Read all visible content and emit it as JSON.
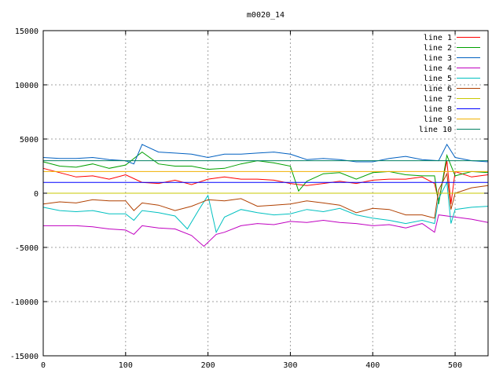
{
  "chart_data": {
    "type": "line",
    "title": "m0020_14",
    "xlabel": "",
    "ylabel": "",
    "xlim": [
      0,
      540
    ],
    "ylim": [
      -15000,
      15000
    ],
    "xticks": [
      0,
      100,
      200,
      300,
      400,
      500
    ],
    "yticks": [
      -15000,
      -10000,
      -5000,
      0,
      5000,
      10000,
      15000
    ],
    "grid": true,
    "legend_position": "top-right",
    "series": [
      {
        "name": "line 1",
        "color": "#ff0000",
        "points": [
          [
            0,
            2300
          ],
          [
            20,
            1900
          ],
          [
            40,
            1500
          ],
          [
            60,
            1600
          ],
          [
            80,
            1300
          ],
          [
            100,
            1700
          ],
          [
            120,
            1000
          ],
          [
            140,
            900
          ],
          [
            160,
            1200
          ],
          [
            180,
            800
          ],
          [
            200,
            1300
          ],
          [
            220,
            1500
          ],
          [
            240,
            1300
          ],
          [
            260,
            1300
          ],
          [
            280,
            1200
          ],
          [
            300,
            900
          ],
          [
            320,
            700
          ],
          [
            340,
            900
          ],
          [
            360,
            1100
          ],
          [
            380,
            900
          ],
          [
            400,
            1200
          ],
          [
            420,
            1300
          ],
          [
            440,
            1300
          ],
          [
            460,
            1500
          ],
          [
            475,
            900
          ],
          [
            480,
            -700
          ],
          [
            490,
            3000
          ],
          [
            495,
            -1000
          ],
          [
            500,
            2000
          ],
          [
            520,
            1500
          ],
          [
            540,
            1700
          ]
        ]
      },
      {
        "name": "line 2",
        "color": "#00a000",
        "points": [
          [
            0,
            2900
          ],
          [
            20,
            2500
          ],
          [
            40,
            2400
          ],
          [
            60,
            2700
          ],
          [
            80,
            2300
          ],
          [
            100,
            2600
          ],
          [
            120,
            3800
          ],
          [
            140,
            2700
          ],
          [
            160,
            2500
          ],
          [
            180,
            2500
          ],
          [
            200,
            2200
          ],
          [
            220,
            2300
          ],
          [
            240,
            2700
          ],
          [
            260,
            3000
          ],
          [
            280,
            2800
          ],
          [
            300,
            2500
          ],
          [
            310,
            200
          ],
          [
            320,
            1100
          ],
          [
            340,
            1800
          ],
          [
            360,
            1900
          ],
          [
            380,
            1300
          ],
          [
            400,
            1900
          ],
          [
            420,
            2000
          ],
          [
            440,
            1700
          ],
          [
            460,
            1600
          ],
          [
            475,
            1600
          ],
          [
            480,
            -1000
          ],
          [
            490,
            3500
          ],
          [
            500,
            1600
          ],
          [
            520,
            2000
          ],
          [
            540,
            1900
          ]
        ]
      },
      {
        "name": "line 3",
        "color": "#0060c0",
        "points": [
          [
            0,
            3300
          ],
          [
            20,
            3200
          ],
          [
            40,
            3200
          ],
          [
            60,
            3300
          ],
          [
            80,
            3100
          ],
          [
            100,
            3000
          ],
          [
            110,
            2700
          ],
          [
            120,
            4500
          ],
          [
            140,
            3800
          ],
          [
            160,
            3700
          ],
          [
            180,
            3600
          ],
          [
            200,
            3300
          ],
          [
            220,
            3600
          ],
          [
            240,
            3600
          ],
          [
            260,
            3700
          ],
          [
            280,
            3800
          ],
          [
            300,
            3600
          ],
          [
            320,
            3100
          ],
          [
            340,
            3200
          ],
          [
            360,
            3100
          ],
          [
            380,
            2900
          ],
          [
            400,
            2900
          ],
          [
            420,
            3200
          ],
          [
            440,
            3400
          ],
          [
            460,
            3100
          ],
          [
            480,
            3000
          ],
          [
            490,
            4500
          ],
          [
            500,
            3300
          ],
          [
            520,
            3000
          ],
          [
            540,
            2900
          ]
        ]
      },
      {
        "name": "line 4",
        "color": "#c000c0",
        "points": [
          [
            0,
            -3000
          ],
          [
            20,
            -3000
          ],
          [
            40,
            -3000
          ],
          [
            60,
            -3100
          ],
          [
            80,
            -3300
          ],
          [
            100,
            -3400
          ],
          [
            110,
            -3800
          ],
          [
            120,
            -3000
          ],
          [
            140,
            -3200
          ],
          [
            160,
            -3300
          ],
          [
            180,
            -3900
          ],
          [
            195,
            -4900
          ],
          [
            210,
            -3800
          ],
          [
            220,
            -3600
          ],
          [
            240,
            -3000
          ],
          [
            260,
            -2800
          ],
          [
            280,
            -2900
          ],
          [
            300,
            -2600
          ],
          [
            320,
            -2700
          ],
          [
            340,
            -2500
          ],
          [
            360,
            -2700
          ],
          [
            380,
            -2800
          ],
          [
            400,
            -3000
          ],
          [
            420,
            -2900
          ],
          [
            440,
            -3200
          ],
          [
            460,
            -2800
          ],
          [
            475,
            -3600
          ],
          [
            480,
            -2000
          ],
          [
            500,
            -2200
          ],
          [
            520,
            -2400
          ],
          [
            540,
            -2700
          ]
        ]
      },
      {
        "name": "line 5",
        "color": "#00c0c0",
        "points": [
          [
            0,
            -1300
          ],
          [
            20,
            -1600
          ],
          [
            40,
            -1700
          ],
          [
            60,
            -1600
          ],
          [
            80,
            -1900
          ],
          [
            100,
            -1900
          ],
          [
            110,
            -2500
          ],
          [
            120,
            -1600
          ],
          [
            140,
            -1800
          ],
          [
            160,
            -2100
          ],
          [
            175,
            -3300
          ],
          [
            190,
            -1400
          ],
          [
            200,
            -200
          ],
          [
            210,
            -3600
          ],
          [
            220,
            -2200
          ],
          [
            240,
            -1500
          ],
          [
            260,
            -1800
          ],
          [
            280,
            -2000
          ],
          [
            300,
            -1900
          ],
          [
            320,
            -1500
          ],
          [
            340,
            -1700
          ],
          [
            360,
            -1400
          ],
          [
            380,
            -2000
          ],
          [
            400,
            -2300
          ],
          [
            420,
            -2500
          ],
          [
            440,
            -2800
          ],
          [
            460,
            -2500
          ],
          [
            475,
            -2800
          ],
          [
            480,
            -500
          ],
          [
            490,
            1000
          ],
          [
            495,
            -2800
          ],
          [
            500,
            -1500
          ],
          [
            520,
            -1300
          ],
          [
            540,
            -1200
          ]
        ]
      },
      {
        "name": "line 6",
        "color": "#b04000",
        "points": [
          [
            0,
            -1000
          ],
          [
            20,
            -800
          ],
          [
            40,
            -900
          ],
          [
            60,
            -600
          ],
          [
            80,
            -700
          ],
          [
            100,
            -700
          ],
          [
            110,
            -1600
          ],
          [
            120,
            -900
          ],
          [
            140,
            -1100
          ],
          [
            160,
            -1600
          ],
          [
            180,
            -1200
          ],
          [
            200,
            -600
          ],
          [
            220,
            -700
          ],
          [
            240,
            -500
          ],
          [
            260,
            -1200
          ],
          [
            280,
            -1100
          ],
          [
            300,
            -1000
          ],
          [
            320,
            -700
          ],
          [
            340,
            -900
          ],
          [
            360,
            -1100
          ],
          [
            380,
            -1800
          ],
          [
            400,
            -1400
          ],
          [
            420,
            -1500
          ],
          [
            440,
            -2000
          ],
          [
            460,
            -2000
          ],
          [
            475,
            -2300
          ],
          [
            480,
            300
          ],
          [
            490,
            1800
          ],
          [
            495,
            -1500
          ],
          [
            500,
            0
          ],
          [
            520,
            500
          ],
          [
            540,
            700
          ]
        ]
      },
      {
        "name": "line 7",
        "color": "#c8c800",
        "points": [
          [
            0,
            0
          ],
          [
            540,
            0
          ]
        ]
      },
      {
        "name": "line 8",
        "color": "#0000ff",
        "points": [
          [
            0,
            1000
          ],
          [
            540,
            1000
          ]
        ]
      },
      {
        "name": "line 9",
        "color": "#f0b000",
        "points": [
          [
            0,
            2000
          ],
          [
            540,
            2000
          ]
        ]
      },
      {
        "name": "line 10",
        "color": "#008060",
        "points": [
          [
            0,
            3000
          ],
          [
            540,
            3000
          ]
        ]
      }
    ]
  }
}
